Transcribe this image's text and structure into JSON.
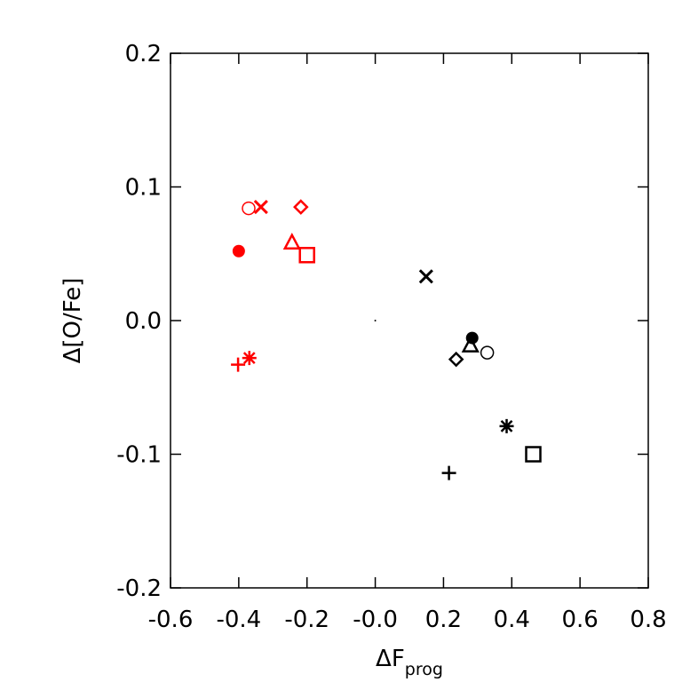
{
  "chart_data": {
    "type": "scatter",
    "x_label": {
      "main": "ΔF",
      "sub": "prog"
    },
    "y_label": "Δ[O/Fe]",
    "xlim": [
      -0.6,
      0.8
    ],
    "xticks": [
      -0.6,
      -0.4,
      -0.2,
      {
        "value": 0,
        "label": "-0.0"
      },
      0.2,
      0.4,
      0.6,
      0.8
    ],
    "ylim": [
      -0.2,
      0.2
    ],
    "yticks": [
      -0.2,
      -0.1,
      {
        "value": 0,
        "label": "0.0"
      },
      0.1,
      0.2
    ],
    "series": [
      {
        "color": "#ff0000",
        "symbols": [
          "open-circle",
          "x",
          "diamond",
          "filled-circle",
          "triangle",
          "square",
          "plus",
          "asterisk"
        ],
        "x": [
          -0.371,
          -0.335,
          -0.218,
          -0.4,
          -0.244,
          -0.2,
          -0.402,
          -0.369
        ],
        "values": [
          0.084,
          0.085,
          0.085,
          0.052,
          0.058,
          0.049,
          -0.033,
          -0.028
        ]
      },
      {
        "color": "#000000",
        "symbols": [
          "x",
          "filled-circle",
          "triangle",
          "open-circle",
          "diamond",
          "asterisk",
          "square",
          "plus",
          "dot"
        ],
        "x": [
          0.149,
          0.284,
          0.279,
          0.328,
          0.237,
          0.385,
          0.463,
          0.216,
          0.0
        ],
        "values": [
          0.033,
          -0.013,
          -0.019,
          -0.024,
          -0.029,
          -0.079,
          -0.1,
          -0.114,
          0.0
        ]
      }
    ]
  }
}
